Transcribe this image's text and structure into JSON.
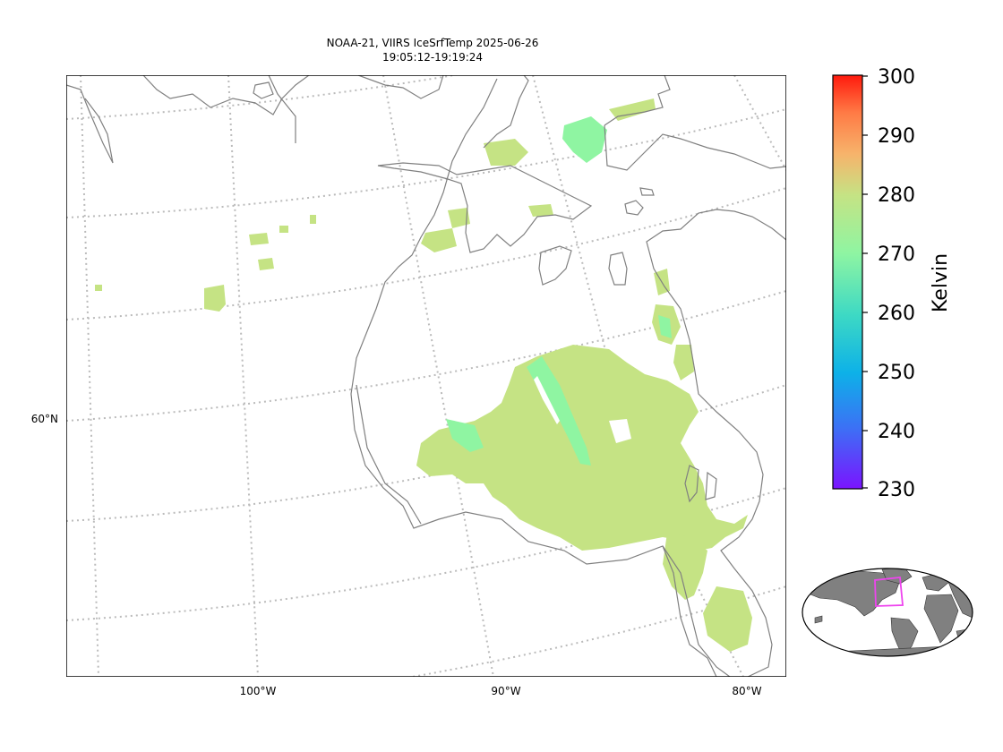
{
  "title": {
    "line1": "NOAA-21, VIIRS IceSrfTemp 2025-06-26",
    "line2": "19:05:12-19:19:24"
  },
  "map": {
    "lat_labels": [
      "60°N"
    ],
    "lon_labels": [
      "100°W",
      "90°W",
      "80°W"
    ],
    "coast_color": "#808080",
    "grid_color": "#bbbbbb",
    "ice_main_color": "#c5e384",
    "ice_cold_color": "#8ff5a2"
  },
  "colorbar": {
    "label": "Kelvin",
    "ticks": [
      "300",
      "290",
      "280",
      "270",
      "260",
      "250",
      "240",
      "230"
    ],
    "colors": [
      "#ff1a0d",
      "#ff7a45",
      "#f7b36b",
      "#c5e384",
      "#8ff5a2",
      "#3dd9c4",
      "#0db1e8",
      "#3b72f5",
      "#7a14ff"
    ]
  },
  "globe_inset": {
    "ocean_color": "#ffffff",
    "land_color": "#808080",
    "box_color": "#ee44ee"
  }
}
